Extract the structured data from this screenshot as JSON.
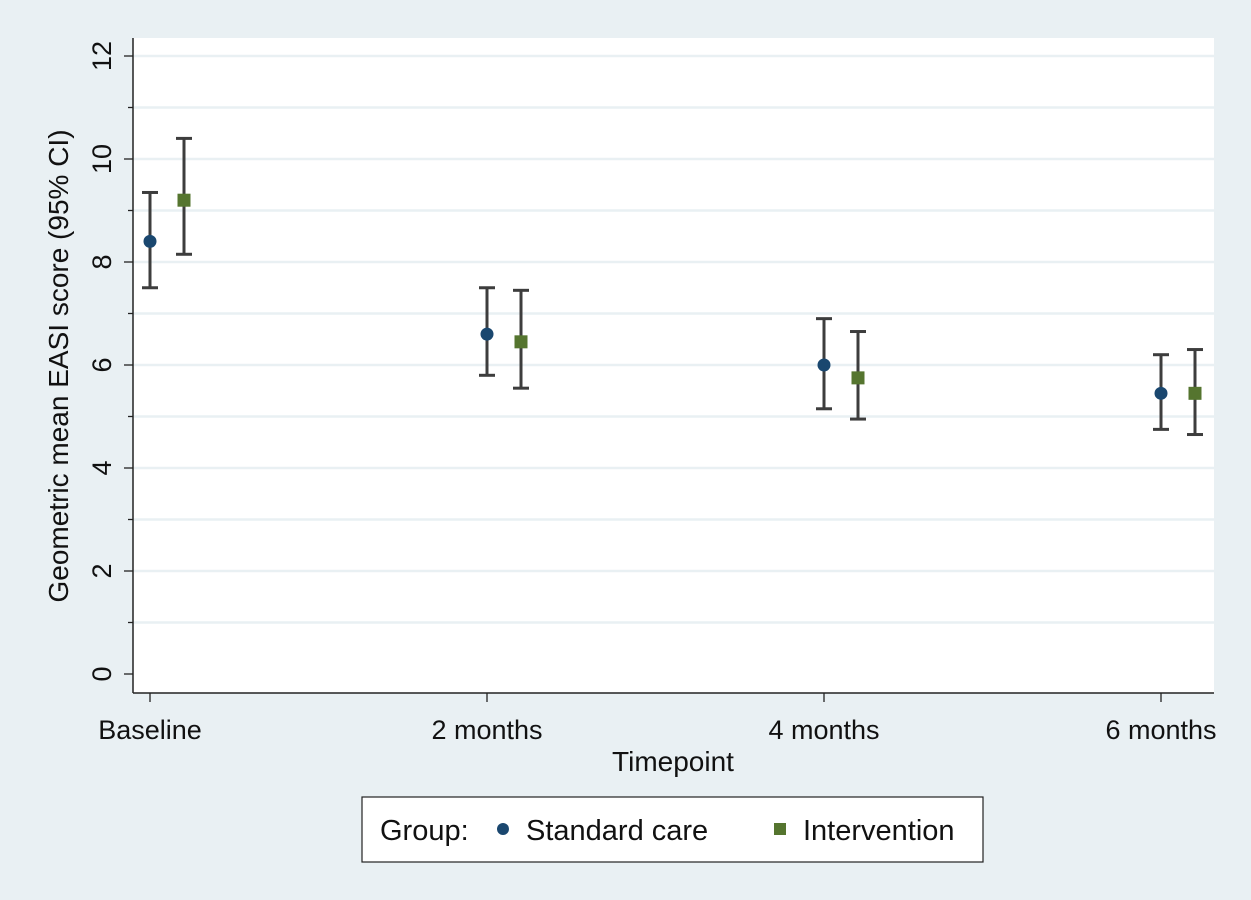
{
  "colors": {
    "outer_background": "#e9f0f3",
    "plot_background": "#ffffff",
    "grid": "#e9f0f3",
    "axis": "#222222",
    "error_bar": "#3d3d3d",
    "standard_care": "#1a476f",
    "intervention": "#55752f"
  },
  "chart_data": {
    "type": "scatter",
    "subtype": "point estimates with 95% confidence interval error bars",
    "xlabel": "Timepoint",
    "ylabel": "Geometric mean EASI score (95% CI)",
    "categories": [
      "Baseline",
      "2 months",
      "4 months",
      "6 months"
    ],
    "ylim": [
      0,
      12
    ],
    "yticks": [
      0,
      2,
      4,
      6,
      8,
      10,
      12
    ],
    "grid": true,
    "legend_position": "bottom-center",
    "legend_title": "Group:",
    "series": [
      {
        "name": "Standard care",
        "marker": "circle",
        "color": "#1a476f",
        "values": [
          8.4,
          6.6,
          6.0,
          5.45
        ],
        "ci_low": [
          7.5,
          5.8,
          5.15,
          4.75
        ],
        "ci_high": [
          9.35,
          7.5,
          6.9,
          6.2
        ]
      },
      {
        "name": "Intervention",
        "marker": "square",
        "color": "#55752f",
        "values": [
          9.2,
          6.45,
          5.75,
          5.45
        ],
        "ci_low": [
          8.15,
          5.55,
          4.95,
          4.65
        ],
        "ci_high": [
          10.4,
          7.45,
          6.65,
          6.3
        ]
      }
    ]
  }
}
